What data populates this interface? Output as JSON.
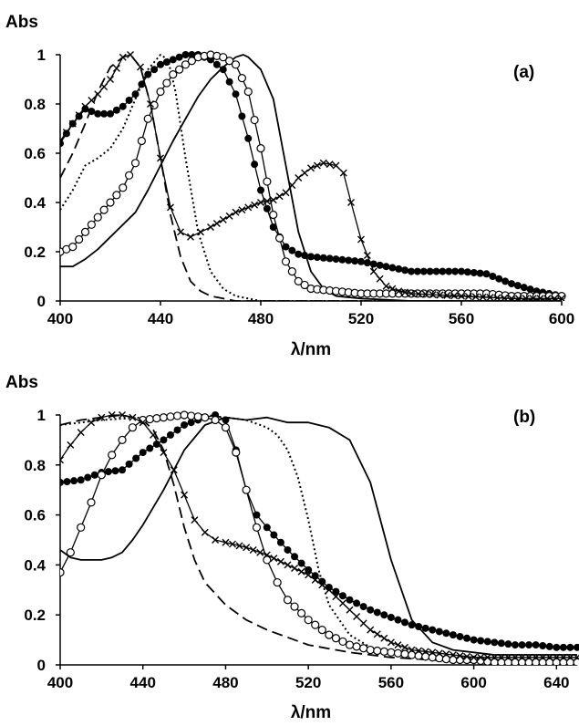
{
  "chart_data": [
    {
      "type": "line",
      "panel_label": "(a)",
      "ylabel": "Abs",
      "xlabel": "λ/nm",
      "xlim": [
        400,
        600
      ],
      "ylim": [
        0,
        1
      ],
      "xticks": [
        400,
        440,
        480,
        520,
        560,
        600
      ],
      "yticks": [
        0,
        0.2,
        0.4,
        0.6,
        0.8,
        1
      ],
      "grid": false,
      "series": [
        {
          "style": "solid",
          "x": [
            400,
            405,
            410,
            415,
            420,
            425,
            430,
            435,
            440,
            445,
            450,
            455,
            460,
            465,
            470,
            473,
            475,
            480,
            485,
            490,
            495,
            500,
            505,
            510,
            520,
            540,
            560,
            580,
            600
          ],
          "y": [
            0.14,
            0.14,
            0.17,
            0.21,
            0.26,
            0.31,
            0.36,
            0.45,
            0.55,
            0.65,
            0.74,
            0.83,
            0.9,
            0.95,
            0.99,
            1.0,
            0.99,
            0.94,
            0.82,
            0.55,
            0.28,
            0.12,
            0.05,
            0.02,
            0.01,
            0.0,
            0.0,
            0.0,
            0.0
          ]
        },
        {
          "style": "dashed",
          "x": [
            400,
            405,
            410,
            415,
            420,
            425,
            428,
            432,
            436,
            440,
            444,
            448,
            452,
            456,
            460,
            465,
            470,
            480,
            500,
            600
          ],
          "y": [
            0.5,
            0.6,
            0.72,
            0.85,
            0.95,
            0.99,
            1.0,
            0.95,
            0.8,
            0.58,
            0.35,
            0.18,
            0.08,
            0.04,
            0.02,
            0.01,
            0.0,
            0.0,
            0.0,
            0.0
          ]
        },
        {
          "style": "dotted",
          "x": [
            400,
            405,
            410,
            415,
            420,
            425,
            430,
            435,
            440,
            443,
            446,
            450,
            455,
            460,
            465,
            470,
            475,
            480,
            490,
            500,
            600
          ],
          "y": [
            0.37,
            0.45,
            0.55,
            0.58,
            0.62,
            0.7,
            0.82,
            0.94,
            1.0,
            0.98,
            0.85,
            0.58,
            0.28,
            0.12,
            0.05,
            0.02,
            0.01,
            0.0,
            0.0,
            0.0,
            0.0
          ]
        },
        {
          "style": "filled-circles",
          "x": [
            400,
            405,
            410,
            415,
            420,
            425,
            430,
            435,
            440,
            445,
            450,
            455,
            460,
            465,
            470,
            475,
            480,
            485,
            490,
            495,
            500,
            510,
            520,
            530,
            540,
            550,
            560,
            570,
            580,
            590,
            600
          ],
          "y": [
            0.64,
            0.72,
            0.78,
            0.76,
            0.76,
            0.79,
            0.84,
            0.92,
            0.96,
            0.98,
            1.0,
            1.0,
            0.98,
            0.94,
            0.84,
            0.66,
            0.45,
            0.3,
            0.22,
            0.19,
            0.18,
            0.17,
            0.16,
            0.14,
            0.12,
            0.12,
            0.12,
            0.11,
            0.07,
            0.04,
            0.02
          ]
        },
        {
          "style": "open-circles",
          "x": [
            400,
            405,
            410,
            415,
            420,
            425,
            430,
            435,
            440,
            445,
            450,
            455,
            460,
            465,
            470,
            475,
            480,
            485,
            490,
            495,
            500,
            510,
            520,
            530,
            540,
            550,
            560,
            570,
            580,
            590,
            600
          ],
          "y": [
            0.2,
            0.22,
            0.28,
            0.34,
            0.4,
            0.46,
            0.56,
            0.74,
            0.85,
            0.92,
            0.96,
            0.99,
            1.0,
            0.99,
            0.96,
            0.85,
            0.62,
            0.35,
            0.16,
            0.08,
            0.05,
            0.04,
            0.03,
            0.03,
            0.03,
            0.03,
            0.03,
            0.03,
            0.02,
            0.02,
            0.02
          ]
        },
        {
          "style": "crosses",
          "x": [
            400,
            405,
            410,
            415,
            420,
            425,
            428,
            432,
            436,
            440,
            444,
            448,
            452,
            456,
            460,
            465,
            470,
            475,
            480,
            485,
            490,
            495,
            500,
            505,
            510,
            513,
            516,
            520,
            525,
            530,
            535,
            540,
            560,
            580,
            600
          ],
          "y": [
            0.65,
            0.72,
            0.79,
            0.84,
            0.9,
            0.99,
            1.0,
            0.95,
            0.8,
            0.58,
            0.38,
            0.28,
            0.26,
            0.28,
            0.3,
            0.33,
            0.36,
            0.38,
            0.4,
            0.41,
            0.44,
            0.5,
            0.54,
            0.56,
            0.55,
            0.52,
            0.4,
            0.25,
            0.12,
            0.06,
            0.04,
            0.03,
            0.02,
            0.01,
            0.01
          ]
        }
      ]
    },
    {
      "type": "line",
      "panel_label": "(b)",
      "ylabel": "Abs",
      "xlabel": "λ/nm",
      "xlim": [
        400,
        650
      ],
      "ylim": [
        0,
        1
      ],
      "xticks": [
        400,
        440,
        480,
        520,
        560,
        600,
        640
      ],
      "yticks": [
        0,
        0.2,
        0.4,
        0.6,
        0.8,
        1
      ],
      "grid": false,
      "series": [
        {
          "style": "solid",
          "x": [
            400,
            405,
            410,
            415,
            420,
            425,
            430,
            435,
            440,
            450,
            460,
            470,
            480,
            490,
            500,
            510,
            520,
            530,
            540,
            550,
            560,
            570,
            580,
            590,
            600,
            610,
            620,
            630,
            640,
            650
          ],
          "y": [
            0.46,
            0.43,
            0.42,
            0.42,
            0.42,
            0.43,
            0.45,
            0.5,
            0.56,
            0.7,
            0.86,
            0.96,
            0.99,
            0.98,
            0.99,
            0.97,
            0.97,
            0.95,
            0.9,
            0.73,
            0.42,
            0.18,
            0.09,
            0.06,
            0.05,
            0.04,
            0.04,
            0.04,
            0.04,
            0.04
          ]
        },
        {
          "style": "dashed",
          "x": [
            400,
            410,
            420,
            430,
            440,
            445,
            450,
            455,
            460,
            465,
            470,
            480,
            490,
            500,
            520,
            540,
            560,
            580,
            600,
            620,
            650
          ],
          "y": [
            0.96,
            0.98,
            0.99,
            1.0,
            0.98,
            0.94,
            0.86,
            0.72,
            0.55,
            0.42,
            0.33,
            0.24,
            0.18,
            0.14,
            0.08,
            0.05,
            0.03,
            0.02,
            0.01,
            0.01,
            0.01
          ]
        },
        {
          "style": "dotted",
          "x": [
            400,
            420,
            440,
            460,
            470,
            480,
            490,
            500,
            505,
            510,
            515,
            520,
            525,
            530,
            540,
            550,
            560,
            580,
            600,
            620,
            650
          ],
          "y": [
            0.96,
            0.98,
            0.99,
            1.0,
            1.0,
            0.99,
            0.98,
            0.95,
            0.92,
            0.86,
            0.75,
            0.58,
            0.38,
            0.24,
            0.12,
            0.07,
            0.05,
            0.03,
            0.02,
            0.02,
            0.02
          ]
        },
        {
          "style": "filled-circles",
          "x": [
            400,
            410,
            420,
            430,
            440,
            450,
            460,
            470,
            475,
            480,
            485,
            490,
            495,
            500,
            510,
            520,
            530,
            540,
            550,
            560,
            570,
            580,
            590,
            600,
            610,
            620,
            630,
            640,
            650
          ],
          "y": [
            0.73,
            0.74,
            0.77,
            0.78,
            0.85,
            0.9,
            0.96,
            0.99,
            1.0,
            0.98,
            0.86,
            0.7,
            0.6,
            0.55,
            0.46,
            0.38,
            0.31,
            0.26,
            0.22,
            0.19,
            0.16,
            0.14,
            0.12,
            0.1,
            0.09,
            0.08,
            0.08,
            0.07,
            0.07
          ]
        },
        {
          "style": "open-circles",
          "x": [
            400,
            405,
            410,
            415,
            420,
            425,
            430,
            435,
            440,
            450,
            460,
            470,
            475,
            480,
            485,
            490,
            495,
            500,
            505,
            510,
            520,
            530,
            540,
            550,
            560,
            570,
            580,
            590,
            600,
            610,
            620,
            630,
            640,
            650
          ],
          "y": [
            0.37,
            0.45,
            0.55,
            0.65,
            0.76,
            0.84,
            0.9,
            0.95,
            0.98,
            0.99,
            1.0,
            0.99,
            0.98,
            0.95,
            0.85,
            0.7,
            0.55,
            0.42,
            0.33,
            0.26,
            0.18,
            0.12,
            0.08,
            0.06,
            0.05,
            0.04,
            0.03,
            0.02,
            0.02,
            0.01,
            0.01,
            0.01,
            0.01,
            0.01
          ]
        },
        {
          "style": "crosses",
          "x": [
            400,
            405,
            410,
            415,
            420,
            425,
            430,
            435,
            440,
            445,
            450,
            455,
            460,
            465,
            470,
            475,
            480,
            490,
            500,
            510,
            520,
            530,
            540,
            550,
            560,
            570,
            580,
            590,
            600,
            610,
            620,
            630,
            640,
            650
          ],
          "y": [
            0.82,
            0.88,
            0.93,
            0.97,
            0.99,
            1.0,
            1.0,
            0.99,
            0.97,
            0.92,
            0.85,
            0.78,
            0.68,
            0.58,
            0.53,
            0.5,
            0.49,
            0.47,
            0.44,
            0.4,
            0.36,
            0.3,
            0.22,
            0.14,
            0.09,
            0.06,
            0.05,
            0.04,
            0.03,
            0.03,
            0.03,
            0.03,
            0.03,
            0.03
          ]
        }
      ]
    }
  ]
}
